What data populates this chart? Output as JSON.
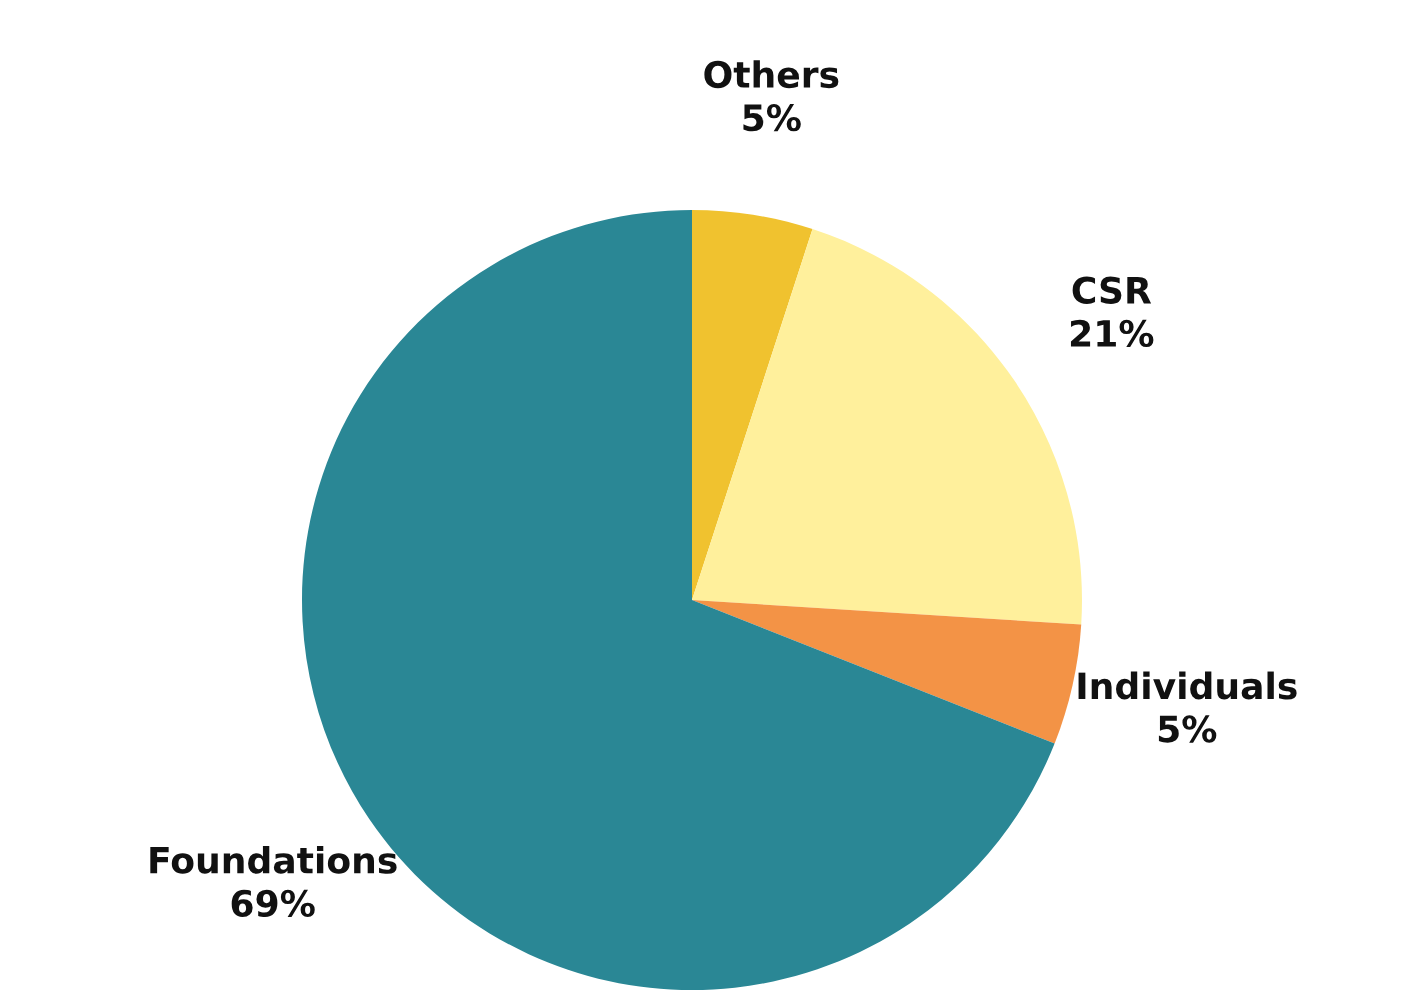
{
  "chart_data": {
    "type": "pie",
    "categories": [
      "Others",
      "CSR",
      "Individuals",
      "Foundations"
    ],
    "values": [
      5,
      21,
      5,
      69
    ],
    "colors": [
      "#f0c22f",
      "#fff09c",
      "#f39346",
      "#2a8795"
    ],
    "value_labels": [
      "5%",
      "21%",
      "5%",
      "69%"
    ]
  }
}
